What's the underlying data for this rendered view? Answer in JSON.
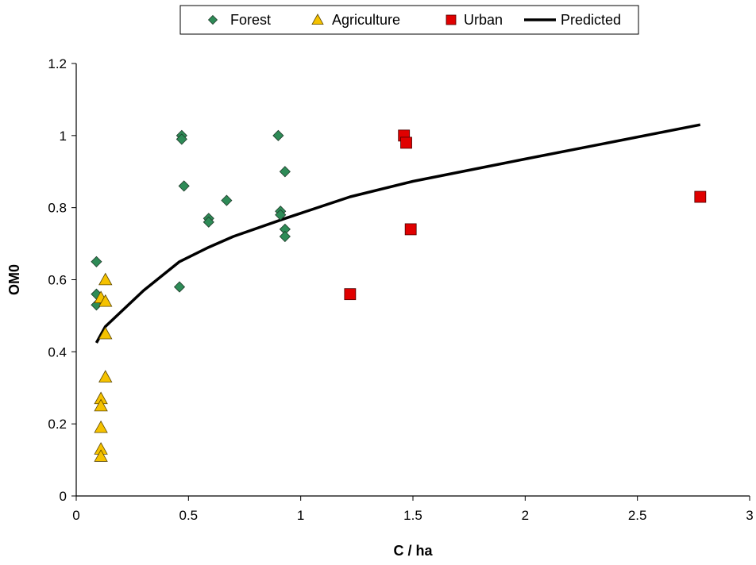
{
  "chart_data": {
    "type": "scatter",
    "title": "",
    "xlabel": "C / ha",
    "ylabel": "OM0",
    "xlim": [
      0,
      3
    ],
    "ylim": [
      0,
      1.2
    ],
    "x_ticks": [
      "0",
      "0.5",
      "1",
      "1.5",
      "2",
      "2.5",
      "3"
    ],
    "y_ticks": [
      "0",
      "0.2",
      "0.4",
      "0.6",
      "0.8",
      "1",
      "1.2"
    ],
    "x_tick_values": [
      0,
      0.5,
      1,
      1.5,
      2,
      2.5,
      3
    ],
    "y_tick_values": [
      0,
      0.2,
      0.4,
      0.6,
      0.8,
      1,
      1.2
    ],
    "grid": false,
    "legend_position": "top-center",
    "series": [
      {
        "name": "Forest",
        "kind": "scatter",
        "marker": "diamond",
        "color": "#2e8b57",
        "points": [
          [
            0.09,
            0.65
          ],
          [
            0.09,
            0.56
          ],
          [
            0.09,
            0.53
          ],
          [
            0.46,
            0.58
          ],
          [
            0.47,
            1.0
          ],
          [
            0.47,
            0.99
          ],
          [
            0.48,
            0.86
          ],
          [
            0.59,
            0.77
          ],
          [
            0.59,
            0.76
          ],
          [
            0.67,
            0.82
          ],
          [
            0.9,
            1.0
          ],
          [
            0.91,
            0.79
          ],
          [
            0.91,
            0.78
          ],
          [
            0.93,
            0.9
          ],
          [
            0.93,
            0.74
          ],
          [
            0.93,
            0.72
          ]
        ]
      },
      {
        "name": "Agriculture",
        "kind": "scatter",
        "marker": "triangle",
        "color": "#f5c200",
        "points": [
          [
            0.11,
            0.55
          ],
          [
            0.13,
            0.6
          ],
          [
            0.13,
            0.54
          ],
          [
            0.13,
            0.45
          ],
          [
            0.13,
            0.33
          ],
          [
            0.11,
            0.27
          ],
          [
            0.11,
            0.25
          ],
          [
            0.11,
            0.19
          ],
          [
            0.11,
            0.13
          ],
          [
            0.11,
            0.11
          ]
        ]
      },
      {
        "name": "Urban",
        "kind": "scatter",
        "marker": "square",
        "color": "#e00000",
        "points": [
          [
            1.46,
            1.0
          ],
          [
            1.47,
            0.98
          ],
          [
            1.49,
            0.74
          ],
          [
            1.22,
            0.56
          ],
          [
            2.78,
            0.83
          ]
        ]
      },
      {
        "name": "Predicted",
        "kind": "line",
        "color": "#000000",
        "points": [
          [
            0.09,
            0.425
          ],
          [
            0.13,
            0.47
          ],
          [
            0.3,
            0.57
          ],
          [
            0.46,
            0.65
          ],
          [
            0.59,
            0.69
          ],
          [
            0.7,
            0.72
          ],
          [
            0.93,
            0.77
          ],
          [
            1.22,
            0.83
          ],
          [
            1.5,
            0.873
          ],
          [
            2.0,
            0.935
          ],
          [
            2.78,
            1.03
          ]
        ]
      }
    ]
  }
}
